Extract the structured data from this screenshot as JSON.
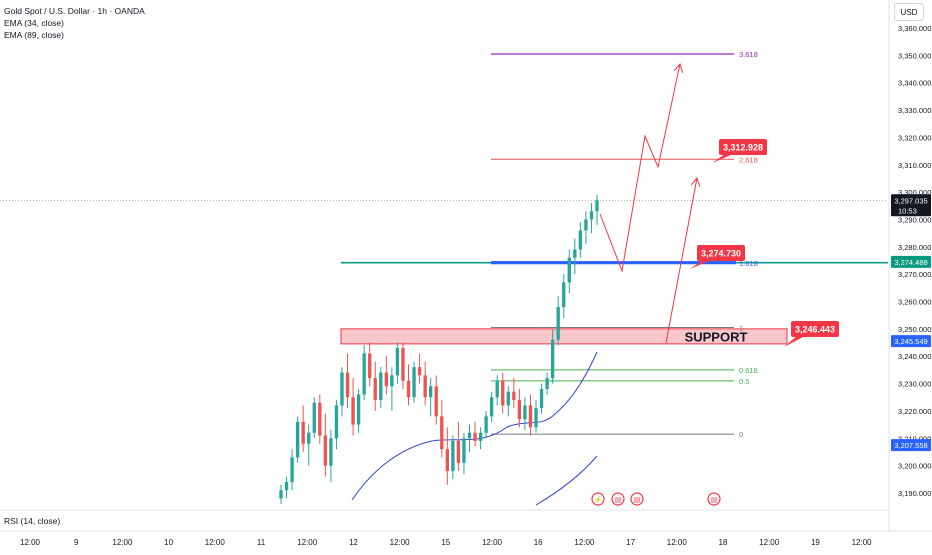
{
  "header": {
    "symbol": "Gold Spot / U.S. Dollar · 1h · OANDA",
    "indicator1": "EMA (34, close)",
    "indicator2": "EMA (89, close)",
    "currency_button": "USD"
  },
  "rsi_label": "RSI (14, close)",
  "colors": {
    "up": "#26a69a",
    "down": "#ef5350",
    "ema": "#3345c9",
    "fib_purple": "#9c27b0",
    "fib_red": "#ef5350",
    "fib_green": "#4caf50",
    "fib_grey": "#787b86",
    "teal_line": "#089981",
    "blue_zone": "#2962ff",
    "label_red": "#f23645",
    "support_fill": "#f8c7cb"
  },
  "chart_data": {
    "type": "candlestick",
    "title": "Gold Spot / U.S. Dollar · 1h · OANDA",
    "ylim": [
      3185,
      3365
    ],
    "y_ticks": [
      3190,
      3200,
      3210,
      3220,
      3230,
      3240,
      3250,
      3260,
      3270,
      3280,
      3290,
      3300,
      3310,
      3320,
      3330,
      3340,
      3350,
      3360
    ],
    "y_tick_labels": [
      "3,190.000",
      "3,200.000",
      "3,210.000",
      "3,220.000",
      "3,230.000",
      "3,240.000",
      "3,250.000",
      "3,260.000",
      "3,270.000",
      "3,280.000",
      "3,290.000",
      "3,300.000",
      "3,310.000",
      "3,320.000",
      "3,330.000",
      "3,340.000",
      "3,350.000",
      "3,360.000"
    ],
    "x_ticks": [
      "12:00",
      "9",
      "12:00",
      "10",
      "12:00",
      "11",
      "12:00",
      "12",
      "12:00",
      "15",
      "12:00",
      "16",
      "12:00",
      "17",
      "12:00",
      "18",
      "12:00",
      "19",
      "12:00"
    ],
    "candles": [
      [
        3188,
        3193,
        3186,
        3191
      ],
      [
        3191,
        3196,
        3188,
        3194
      ],
      [
        3194,
        3206,
        3191,
        3203
      ],
      [
        3203,
        3218,
        3201,
        3216
      ],
      [
        3216,
        3222,
        3205,
        3208
      ],
      [
        3208,
        3215,
        3200,
        3212
      ],
      [
        3212,
        3225,
        3210,
        3223
      ],
      [
        3223,
        3226,
        3208,
        3211
      ],
      [
        3211,
        3219,
        3196,
        3200
      ],
      [
        3200,
        3213,
        3194,
        3210
      ],
      [
        3210,
        3224,
        3206,
        3222
      ],
      [
        3222,
        3236,
        3218,
        3234
      ],
      [
        3234,
        3241,
        3221,
        3225
      ],
      [
        3225,
        3232,
        3211,
        3215
      ],
      [
        3215,
        3228,
        3212,
        3226
      ],
      [
        3226,
        3244,
        3224,
        3241
      ],
      [
        3241,
        3245,
        3229,
        3232
      ],
      [
        3232,
        3238,
        3220,
        3224
      ],
      [
        3224,
        3236,
        3221,
        3234
      ],
      [
        3234,
        3240,
        3226,
        3229
      ],
      [
        3229,
        3236,
        3220,
        3233
      ],
      [
        3233,
        3245,
        3230,
        3243
      ],
      [
        3243,
        3245,
        3228,
        3231
      ],
      [
        3231,
        3237,
        3222,
        3225
      ],
      [
        3225,
        3238,
        3223,
        3236
      ],
      [
        3236,
        3241,
        3230,
        3233
      ],
      [
        3233,
        3238,
        3222,
        3225
      ],
      [
        3225,
        3232,
        3218,
        3229
      ],
      [
        3229,
        3233,
        3215,
        3218
      ],
      [
        3218,
        3224,
        3203,
        3206
      ],
      [
        3206,
        3214,
        3193,
        3198
      ],
      [
        3198,
        3211,
        3195,
        3209
      ],
      [
        3209,
        3216,
        3198,
        3201
      ],
      [
        3201,
        3212,
        3197,
        3210
      ],
      [
        3210,
        3215,
        3205,
        3212
      ],
      [
        3212,
        3216,
        3207,
        3209
      ],
      [
        3209,
        3214,
        3206,
        3212
      ],
      [
        3212,
        3220,
        3210,
        3218
      ],
      [
        3218,
        3227,
        3216,
        3225
      ],
      [
        3225,
        3233,
        3222,
        3231
      ],
      [
        3231,
        3234,
        3219,
        3222
      ],
      [
        3222,
        3229,
        3218,
        3227
      ],
      [
        3227,
        3232,
        3221,
        3224
      ],
      [
        3224,
        3228,
        3214,
        3217
      ],
      [
        3217,
        3225,
        3213,
        3222
      ],
      [
        3222,
        3226,
        3211,
        3214
      ],
      [
        3214,
        3224,
        3212,
        3221
      ],
      [
        3221,
        3230,
        3219,
        3228
      ],
      [
        3228,
        3234,
        3226,
        3232
      ],
      [
        3232,
        3250,
        3230,
        3246
      ],
      [
        3246,
        3262,
        3244,
        3258
      ],
      [
        3258,
        3270,
        3254,
        3267
      ],
      [
        3267,
        3279,
        3263,
        3276
      ],
      [
        3276,
        3283,
        3270,
        3279
      ],
      [
        3279,
        3289,
        3276,
        3286
      ],
      [
        3286,
        3293,
        3281,
        3290
      ],
      [
        3290,
        3296,
        3285,
        3293
      ],
      [
        3293,
        3299,
        3288,
        3297
      ]
    ],
    "levels": {
      "fib": [
        {
          "label": "3.618",
          "price": 3350.5,
          "color": "#9c27b0"
        },
        {
          "label": "2.618",
          "price": 3312.0,
          "color": "#ef5350"
        },
        {
          "label": "1.618",
          "price": 3274.0,
          "color": "#2962ff"
        },
        {
          "label": "1",
          "price": 3250.5,
          "color": "#787b86"
        },
        {
          "label": "0.618",
          "price": 3235.0,
          "color": "#4caf50"
        },
        {
          "label": "0.5",
          "price": 3231.0,
          "color": "#4caf50"
        },
        {
          "label": "0",
          "price": 3211.5,
          "color": "#787b86"
        }
      ],
      "current_price_line": 3297.0
    },
    "annotations": {
      "support_label": "SUPPORT",
      "callouts": [
        "3,312.928",
        "3,274.730",
        "3,246.443"
      ],
      "price_tags": [
        {
          "text": "3,297.035",
          "sub": "10:53",
          "price": 3297.0,
          "color": "#131722"
        },
        {
          "text": "3,274.488",
          "price": 3274.5,
          "color": "#089981"
        },
        {
          "text": "3,245.549",
          "price": 3245.5,
          "color": "#2962ff"
        },
        {
          "text": "3,207.558",
          "price": 3207.5,
          "color": "#2962ff"
        }
      ]
    }
  }
}
